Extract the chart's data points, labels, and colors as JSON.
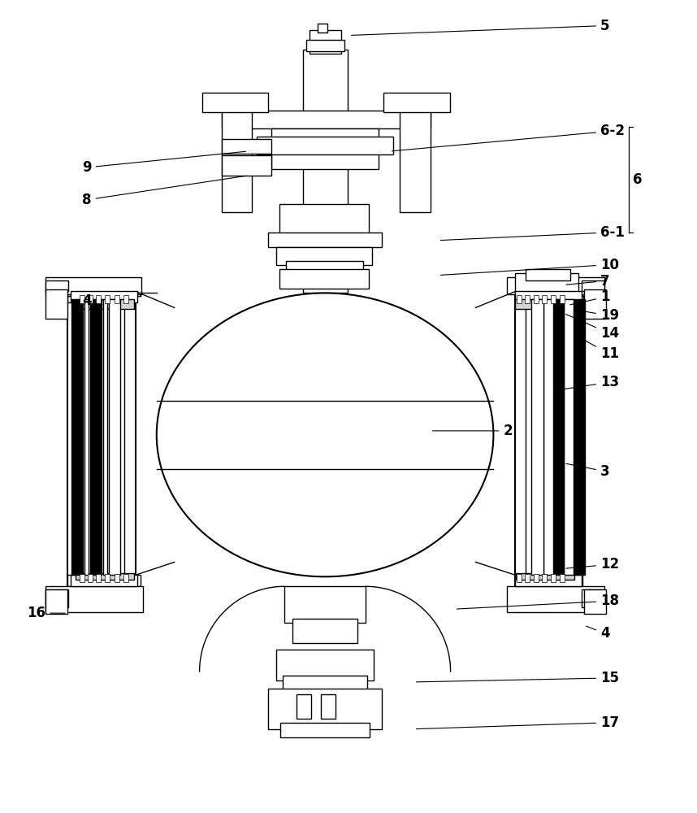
{
  "bg_color": "#ffffff",
  "lc": "#000000",
  "fig_w": 8.58,
  "fig_h": 10.0,
  "dpi": 100,
  "ann_fs": 12,
  "ann_fs_sm": 11
}
